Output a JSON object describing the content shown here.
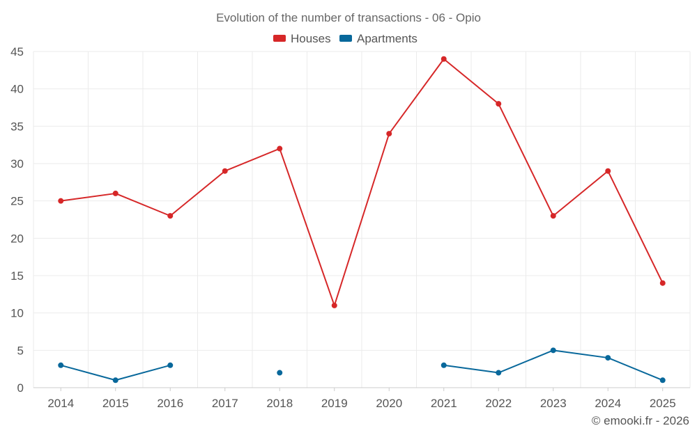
{
  "chart_data": {
    "type": "line",
    "title": "Evolution of the number of transactions - 06 - Opio",
    "categories": [
      "2014",
      "2015",
      "2016",
      "2017",
      "2018",
      "2019",
      "2020",
      "2021",
      "2022",
      "2023",
      "2024",
      "2025"
    ],
    "series": [
      {
        "name": "Houses",
        "color": "#d62728",
        "values": [
          25,
          26,
          23,
          29,
          32,
          11,
          34,
          44,
          38,
          23,
          29,
          14
        ]
      },
      {
        "name": "Apartments",
        "color": "#08689b",
        "values": [
          3,
          1,
          3,
          null,
          2,
          null,
          null,
          3,
          2,
          5,
          4,
          1
        ]
      }
    ],
    "ylim": [
      0,
      45
    ],
    "yticks": [
      "0",
      "5",
      "10",
      "15",
      "20",
      "25",
      "30",
      "35",
      "40",
      "45"
    ],
    "xlabel": "",
    "ylabel": "",
    "grid": true,
    "legend": "top-center"
  },
  "credit": "© emooki.fr - 2026"
}
